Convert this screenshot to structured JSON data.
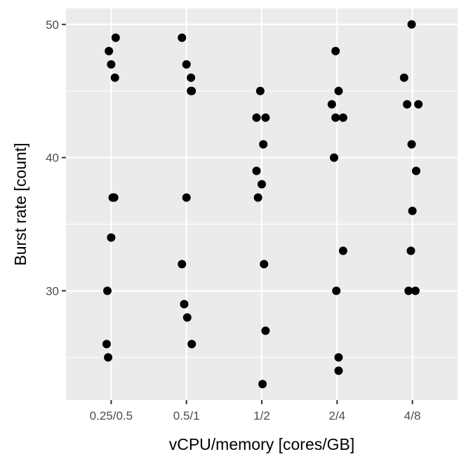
{
  "chart_data": {
    "type": "scatter",
    "title": "",
    "xlabel": "vCPU/memory [cores/GB]",
    "ylabel": "Burst rate [count]",
    "categories": [
      "0.25/0.5",
      "0.5/1",
      "1/2",
      "2/4",
      "4/8"
    ],
    "ylim": [
      21.8,
      51.2
    ],
    "yticks": [
      30,
      40,
      50
    ],
    "grid": true,
    "legend": "none",
    "colors": {
      "panel": "#ebebeb",
      "grid": "#ffffff",
      "point": "#000000"
    },
    "points": [
      {
        "x": "0.25/0.5",
        "offset": 0.06,
        "y": 49
      },
      {
        "x": "0.25/0.5",
        "offset": -0.03,
        "y": 48
      },
      {
        "x": "0.25/0.5",
        "offset": 0.0,
        "y": 47
      },
      {
        "x": "0.25/0.5",
        "offset": 0.05,
        "y": 46
      },
      {
        "x": "0.25/0.5",
        "offset": 0.02,
        "y": 37
      },
      {
        "x": "0.25/0.5",
        "offset": 0.04,
        "y": 37
      },
      {
        "x": "0.25/0.5",
        "offset": 0.0,
        "y": 34
      },
      {
        "x": "0.25/0.5",
        "offset": -0.05,
        "y": 30
      },
      {
        "x": "0.25/0.5",
        "offset": -0.06,
        "y": 26
      },
      {
        "x": "0.25/0.5",
        "offset": -0.04,
        "y": 25
      },
      {
        "x": "0.5/1",
        "offset": -0.06,
        "y": 49
      },
      {
        "x": "0.5/1",
        "offset": 0.0,
        "y": 47
      },
      {
        "x": "0.5/1",
        "offset": 0.06,
        "y": 46
      },
      {
        "x": "0.5/1",
        "offset": 0.07,
        "y": 45
      },
      {
        "x": "0.5/1",
        "offset": 0.06,
        "y": 45
      },
      {
        "x": "0.5/1",
        "offset": 0.0,
        "y": 37
      },
      {
        "x": "0.5/1",
        "offset": -0.06,
        "y": 32
      },
      {
        "x": "0.5/1",
        "offset": -0.03,
        "y": 29
      },
      {
        "x": "0.5/1",
        "offset": 0.01,
        "y": 28
      },
      {
        "x": "0.5/1",
        "offset": 0.07,
        "y": 26
      },
      {
        "x": "1/2",
        "offset": -0.02,
        "y": 45
      },
      {
        "x": "1/2",
        "offset": -0.07,
        "y": 43
      },
      {
        "x": "1/2",
        "offset": 0.05,
        "y": 43
      },
      {
        "x": "1/2",
        "offset": 0.02,
        "y": 41
      },
      {
        "x": "1/2",
        "offset": -0.07,
        "y": 39
      },
      {
        "x": "1/2",
        "offset": 0.0,
        "y": 38
      },
      {
        "x": "1/2",
        "offset": -0.05,
        "y": 37
      },
      {
        "x": "1/2",
        "offset": 0.03,
        "y": 32
      },
      {
        "x": "1/2",
        "offset": 0.05,
        "y": 27
      },
      {
        "x": "1/2",
        "offset": 0.01,
        "y": 23
      },
      {
        "x": "2/4",
        "offset": -0.02,
        "y": 48
      },
      {
        "x": "2/4",
        "offset": 0.02,
        "y": 45
      },
      {
        "x": "2/4",
        "offset": -0.07,
        "y": 44
      },
      {
        "x": "2/4",
        "offset": -0.02,
        "y": 43
      },
      {
        "x": "2/4",
        "offset": 0.08,
        "y": 43
      },
      {
        "x": "2/4",
        "offset": -0.04,
        "y": 40
      },
      {
        "x": "2/4",
        "offset": 0.08,
        "y": 33
      },
      {
        "x": "2/4",
        "offset": -0.01,
        "y": 30
      },
      {
        "x": "2/4",
        "offset": 0.02,
        "y": 25
      },
      {
        "x": "2/4",
        "offset": 0.02,
        "y": 24
      },
      {
        "x": "4/8",
        "offset": -0.01,
        "y": 50
      },
      {
        "x": "4/8",
        "offset": -0.11,
        "y": 46
      },
      {
        "x": "4/8",
        "offset": -0.07,
        "y": 44
      },
      {
        "x": "4/8",
        "offset": 0.08,
        "y": 44
      },
      {
        "x": "4/8",
        "offset": -0.01,
        "y": 41
      },
      {
        "x": "4/8",
        "offset": 0.05,
        "y": 39
      },
      {
        "x": "4/8",
        "offset": 0.0,
        "y": 36
      },
      {
        "x": "4/8",
        "offset": -0.02,
        "y": 33
      },
      {
        "x": "4/8",
        "offset": -0.05,
        "y": 30
      },
      {
        "x": "4/8",
        "offset": 0.04,
        "y": 30
      }
    ]
  }
}
